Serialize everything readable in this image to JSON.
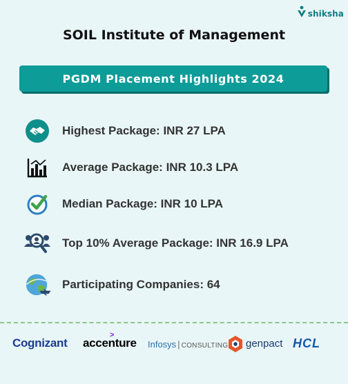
{
  "brand": {
    "name": "shiksha",
    "icon": "shiksha-logo-icon"
  },
  "title": "SOIL Institute of Management",
  "banner": "PGDM Placement Highlights 2024",
  "stats": [
    {
      "icon": "handshake-icon",
      "label": "Highest Package: INR 27 LPA"
    },
    {
      "icon": "bar-chart-icon",
      "label": "Average Package: INR 10.3 LPA"
    },
    {
      "icon": "checkmark-icon",
      "label": "Median Package: INR 10 LPA"
    },
    {
      "icon": "people-search-icon",
      "label": "Top 10% Average Package: INR 16.9 LPA"
    },
    {
      "icon": "globe-plane-icon",
      "label": "Participating  Companies: 64"
    }
  ],
  "recruiters": {
    "cognizant": "Cognizant",
    "accenture": "accenture",
    "infosys": "Infosys",
    "infosys_sub": "CONSULTING",
    "genpact": "genpact",
    "hcl": "HCL"
  },
  "colors": {
    "background": "#e9f6f7",
    "accent": "#0e9c99",
    "divider": "#89c58a"
  }
}
